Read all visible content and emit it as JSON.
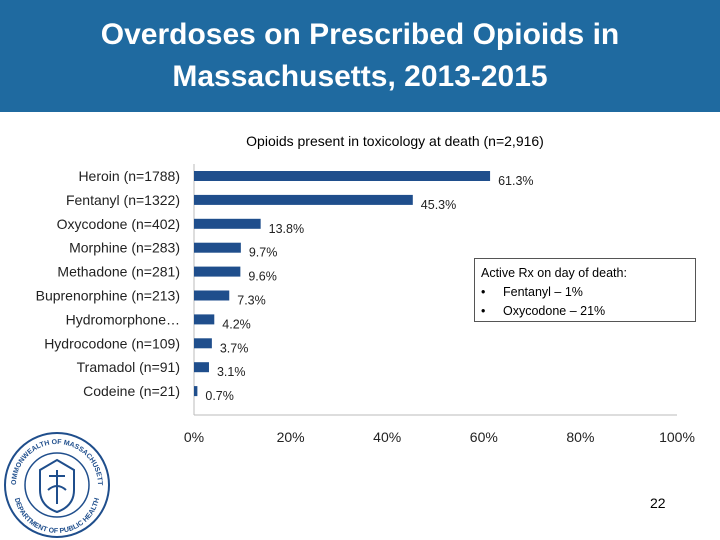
{
  "slide": {
    "title": "Overdoses on Prescribed Opioids in Massachusetts, 2013-2015",
    "page_number": "22",
    "seal_text": "COMMONWEALTH OF MASSACHUSETTS · DEPARTMENT OF PUBLIC HEALTH"
  },
  "callout": {
    "heading": "Active Rx on day of death:",
    "items": [
      "Fentanyl – 1%",
      "Oxycodone – 21%"
    ]
  },
  "colors": {
    "title_bar": "#1f6aa0",
    "bar": "#1f4e8c"
  },
  "chart_data": {
    "type": "bar",
    "orientation": "horizontal",
    "title": "Opioids present in toxicology at death (n=2,916)",
    "categories": [
      "Heroin (n=1788)",
      "Fentanyl (n=1322)",
      "Oxycodone (n=402)",
      "Morphine (n=283)",
      "Methadone (n=281)",
      "Buprenorphine (n=213)",
      "Hydromorphone…",
      "Hydrocodone (n=109)",
      "Tramadol (n=91)",
      "Codeine (n=21)"
    ],
    "values": [
      61.3,
      45.3,
      13.8,
      9.7,
      9.6,
      7.3,
      4.2,
      3.7,
      3.1,
      0.7
    ],
    "value_labels": [
      "61.3%",
      "45.3%",
      "13.8%",
      "9.7%",
      "9.6%",
      "7.3%",
      "4.2%",
      "3.7%",
      "3.1%",
      "0.7%"
    ],
    "xlim": [
      0,
      100
    ],
    "x_ticks": [
      "0%",
      "20%",
      "40%",
      "60%",
      "80%",
      "100%"
    ],
    "grid": false,
    "legend": "none"
  }
}
